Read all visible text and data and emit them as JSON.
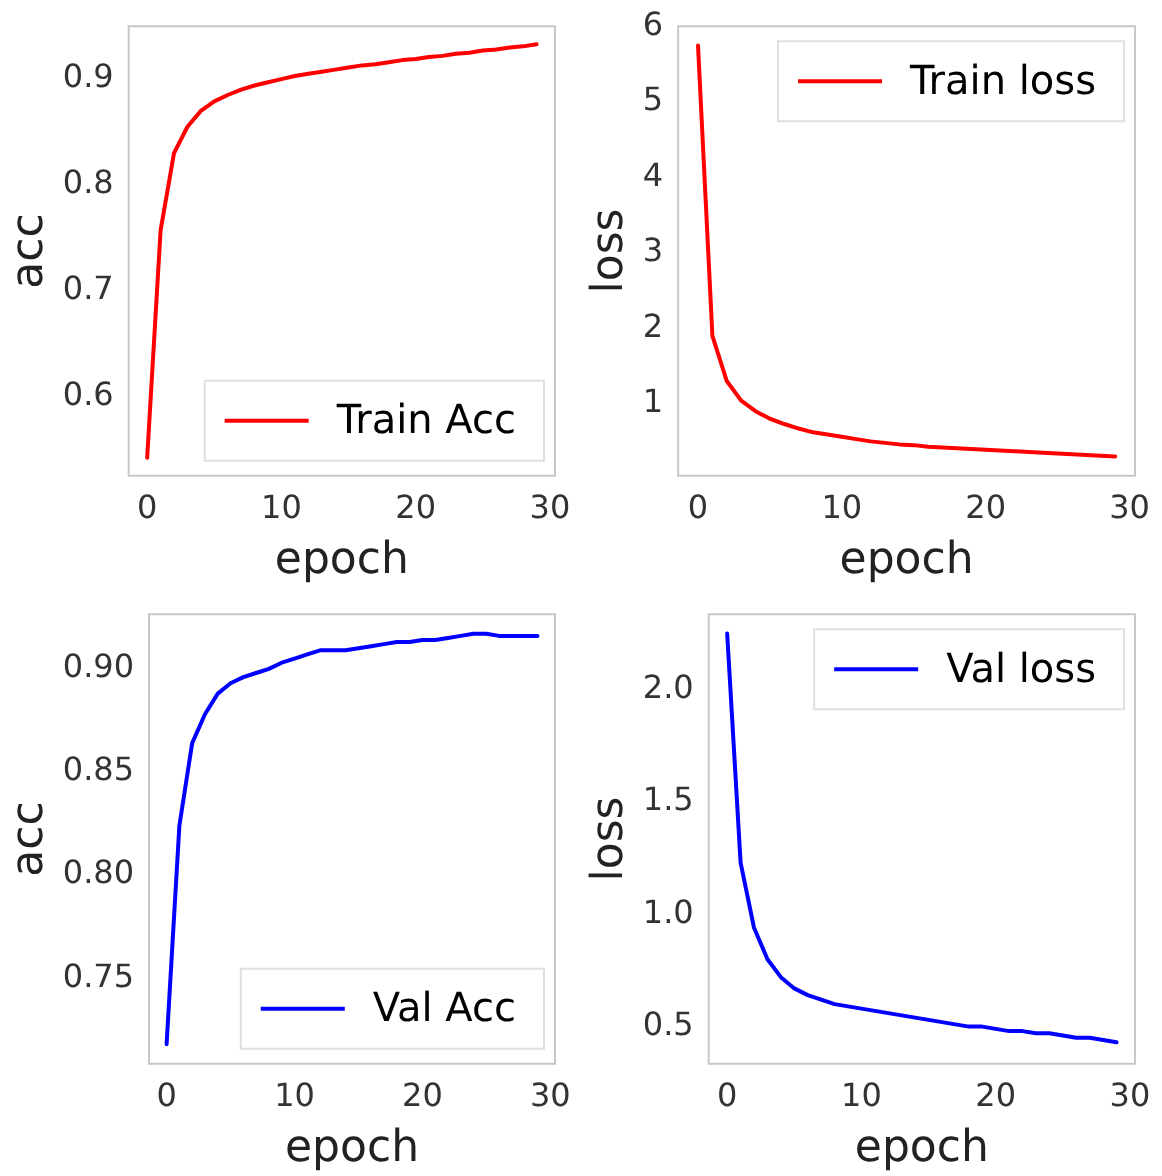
{
  "chart_data": [
    {
      "type": "line",
      "xlabel": "epoch",
      "ylabel": "acc",
      "x": [
        0,
        1,
        2,
        3,
        4,
        5,
        6,
        7,
        8,
        9,
        10,
        11,
        12,
        13,
        14,
        15,
        16,
        17,
        18,
        19,
        20,
        21,
        22,
        23,
        24,
        25,
        26,
        27,
        28,
        29
      ],
      "series": [
        {
          "name": "Train Acc",
          "color": "#ff0000",
          "values": [
            0.542,
            0.757,
            0.83,
            0.855,
            0.87,
            0.879,
            0.885,
            0.89,
            0.894,
            0.897,
            0.9,
            0.903,
            0.905,
            0.907,
            0.909,
            0.911,
            0.913,
            0.914,
            0.916,
            0.918,
            0.919,
            0.921,
            0.922,
            0.924,
            0.925,
            0.927,
            0.928,
            0.93,
            0.931,
            0.933
          ]
        }
      ],
      "xlim": [
        -1.45,
        30.45
      ],
      "xticks": [
        0,
        10,
        20,
        30
      ],
      "ylim": [
        0.524,
        0.951
      ],
      "yticks": [
        0.6,
        0.7,
        0.8,
        0.9
      ],
      "legend": "bottom right",
      "grid": false
    },
    {
      "type": "line",
      "xlabel": "epoch",
      "ylabel": "loss",
      "x": [
        0,
        1,
        2,
        3,
        4,
        5,
        6,
        7,
        8,
        9,
        10,
        11,
        12,
        13,
        14,
        15,
        16,
        17,
        18,
        19,
        20,
        21,
        22,
        23,
        24,
        25,
        26,
        27,
        28,
        29
      ],
      "series": [
        {
          "name": "Train loss",
          "color": "#ff0000",
          "values": [
            5.75,
            1.9,
            1.3,
            1.04,
            0.9,
            0.8,
            0.73,
            0.67,
            0.62,
            0.59,
            0.56,
            0.53,
            0.5,
            0.48,
            0.46,
            0.45,
            0.43,
            0.42,
            0.41,
            0.4,
            0.39,
            0.38,
            0.37,
            0.36,
            0.35,
            0.34,
            0.33,
            0.32,
            0.31,
            0.3
          ]
        }
      ],
      "xlim": [
        -1.45,
        30.45
      ],
      "xticks": [
        0,
        10,
        20,
        30
      ],
      "ylim": [
        0.03,
        6.02
      ],
      "yticks": [
        1,
        2,
        3,
        4,
        5,
        6
      ],
      "legend": "top right",
      "grid": false
    },
    {
      "type": "line",
      "xlabel": "epoch",
      "ylabel": "acc",
      "x": [
        0,
        1,
        2,
        3,
        4,
        5,
        6,
        7,
        8,
        9,
        10,
        11,
        12,
        13,
        14,
        15,
        16,
        17,
        18,
        19,
        20,
        21,
        22,
        23,
        24,
        25,
        26,
        27,
        28,
        29
      ],
      "series": [
        {
          "name": "Val Acc",
          "color": "#0000ff",
          "values": [
            0.718,
            0.824,
            0.864,
            0.878,
            0.888,
            0.893,
            0.896,
            0.898,
            0.9,
            0.903,
            0.905,
            0.907,
            0.909,
            0.909,
            0.909,
            0.91,
            0.911,
            0.912,
            0.913,
            0.913,
            0.914,
            0.914,
            0.915,
            0.916,
            0.917,
            0.917,
            0.916,
            0.916,
            0.916,
            0.916
          ]
        }
      ],
      "xlim": [
        -1.45,
        30.45
      ],
      "xticks": [
        0,
        10,
        20,
        30
      ],
      "ylim": [
        0.708,
        0.927
      ],
      "yticks": [
        {
          "value": 0.75,
          "label": "0.75"
        },
        {
          "value": 0.8,
          "label": "0.80"
        },
        {
          "value": 0.85,
          "label": "0.85"
        },
        {
          "value": 0.9,
          "label": "0.90"
        }
      ],
      "legend": "bottom right",
      "grid": false
    },
    {
      "type": "line",
      "xlabel": "epoch",
      "ylabel": "loss",
      "x": [
        0,
        1,
        2,
        3,
        4,
        5,
        6,
        7,
        8,
        9,
        10,
        11,
        12,
        13,
        14,
        15,
        16,
        17,
        18,
        19,
        20,
        21,
        22,
        23,
        24,
        25,
        26,
        27,
        28,
        29
      ],
      "series": [
        {
          "name": "Val loss",
          "color": "#0000ff",
          "values": [
            2.25,
            1.23,
            0.94,
            0.8,
            0.72,
            0.67,
            0.64,
            0.62,
            0.6,
            0.59,
            0.58,
            0.57,
            0.56,
            0.55,
            0.54,
            0.53,
            0.52,
            0.51,
            0.5,
            0.5,
            0.49,
            0.48,
            0.48,
            0.47,
            0.47,
            0.46,
            0.45,
            0.45,
            0.44,
            0.43
          ]
        }
      ],
      "xlim": [
        -1.45,
        30.45
      ],
      "xticks": [
        0,
        10,
        20,
        30
      ],
      "ylim": [
        0.33,
        2.34
      ],
      "yticks": [
        {
          "value": 0.5,
          "label": "0.5"
        },
        {
          "value": 1,
          "label": "1.0"
        },
        {
          "value": 1.5,
          "label": "1.5"
        },
        {
          "value": 2,
          "label": "2.0"
        }
      ],
      "legend": "top right",
      "grid": false
    }
  ]
}
